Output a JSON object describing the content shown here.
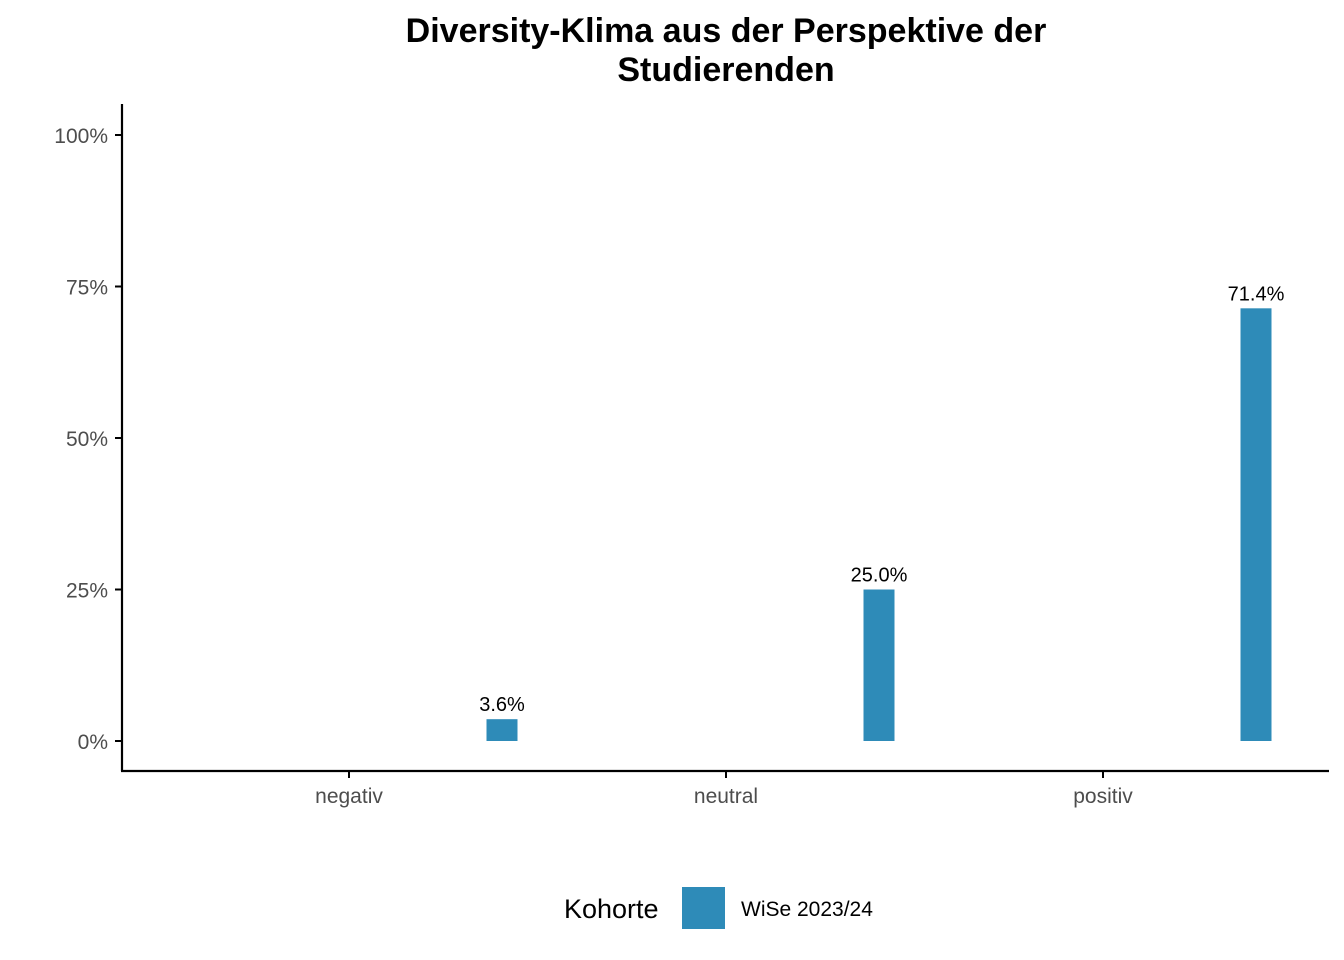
{
  "chart_data": {
    "type": "bar",
    "title_lines": [
      "Diversity-Klima aus der Perspektive der",
      "Studierenden"
    ],
    "xlabel": "",
    "ylabel": "",
    "categories": [
      "negativ",
      "neutral",
      "positiv"
    ],
    "series": [
      {
        "name": "WiSe 2023/24",
        "values": [
          3.6,
          25.0,
          71.4
        ],
        "labels": [
          "3.6%",
          "25.0%",
          "71.4%"
        ],
        "color": "#2e8bb8"
      }
    ],
    "ylim": [
      0,
      100
    ],
    "yticks": [
      0,
      25,
      50,
      75,
      100
    ],
    "ytick_labels": [
      "0%",
      "25%",
      "50%",
      "75%",
      "100%"
    ],
    "grid": false,
    "legend": {
      "title": "Kohorte",
      "position": "bottom"
    }
  }
}
